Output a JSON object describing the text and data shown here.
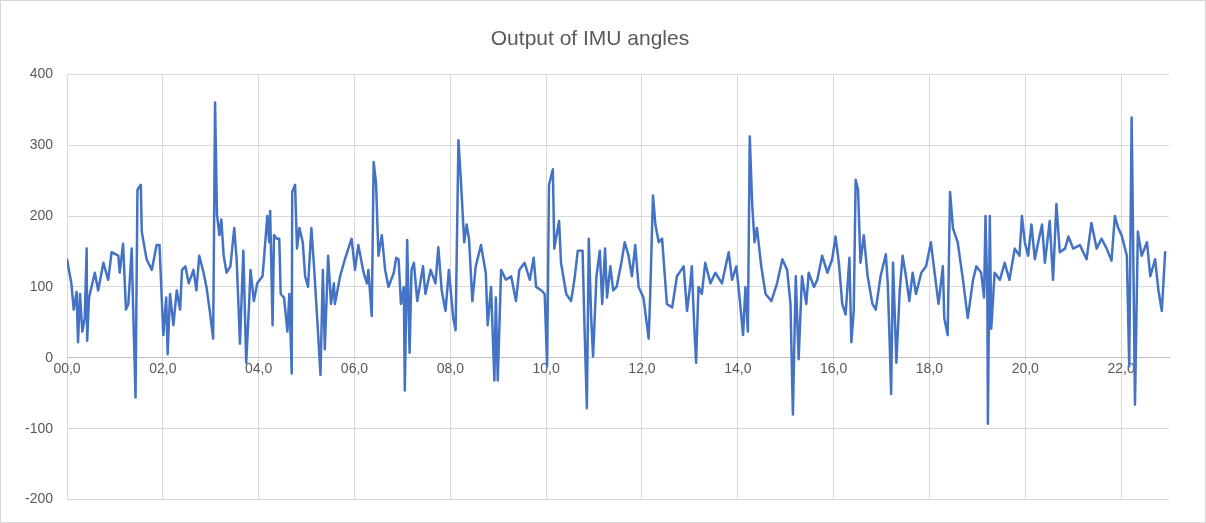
{
  "chart_data": {
    "type": "line",
    "title": "Output of IMU angles",
    "x": [
      0,
      0.09,
      0.14,
      0.2,
      0.23,
      0.27,
      0.32,
      0.37,
      0.41,
      0.42,
      0.46,
      0.58,
      0.65,
      0.76,
      0.86,
      0.93,
      1.07,
      1.1,
      1.17,
      1.23,
      1.28,
      1.35,
      1.38,
      1.43,
      1.47,
      1.54,
      1.56,
      1.66,
      1.77,
      1.87,
      1.93,
      2.01,
      2.07,
      2.1,
      2.15,
      2.22,
      2.29,
      2.36,
      2.4,
      2.47,
      2.54,
      2.64,
      2.7,
      2.76,
      2.85,
      2.91,
      2.98,
      3.05,
      3.09,
      3.13,
      3.18,
      3.22,
      3.27,
      3.33,
      3.41,
      3.49,
      3.54,
      3.61,
      3.68,
      3.74,
      3.8,
      3.83,
      3.9,
      3.97,
      4.08,
      4.11,
      4.18,
      4.22,
      4.24,
      4.29,
      4.32,
      4.38,
      4.43,
      4.46,
      4.53,
      4.6,
      4.64,
      4.69,
      4.7,
      4.76,
      4.8,
      4.85,
      4.92,
      4.97,
      5.03,
      5.1,
      5.16,
      5.23,
      5.29,
      5.34,
      5.38,
      5.45,
      5.51,
      5.57,
      5.59,
      5.7,
      5.8,
      5.94,
      6.01,
      6.08,
      6.19,
      6.26,
      6.29,
      6.36,
      6.4,
      6.45,
      6.5,
      6.57,
      6.64,
      6.71,
      6.82,
      6.87,
      6.92,
      6.97,
      7.03,
      7.05,
      7.1,
      7.15,
      7.19,
      7.24,
      7.31,
      7.43,
      7.48,
      7.59,
      7.69,
      7.75,
      7.82,
      7.9,
      7.97,
      8.06,
      8.11,
      8.17,
      8.22,
      8.29,
      8.34,
      8.39,
      8.46,
      8.53,
      8.64,
      8.74,
      8.78,
      8.85,
      8.92,
      8.95,
      8.99,
      9.06,
      9.16,
      9.27,
      9.37,
      9.44,
      9.55,
      9.66,
      9.74,
      9.79,
      9.9,
      9.97,
      10.02,
      10.06,
      10.14,
      10.17,
      10.27,
      10.31,
      10.42,
      10.52,
      10.59,
      10.66,
      10.76,
      10.8,
      10.85,
      10.89,
      10.94,
      10.98,
      11.05,
      11.12,
      11.17,
      11.23,
      11.27,
      11.34,
      11.4,
      11.47,
      11.57,
      11.64,
      11.72,
      11.79,
      11.86,
      11.93,
      12.03,
      12.14,
      12.17,
      12.23,
      12.28,
      12.35,
      12.42,
      12.52,
      12.63,
      12.73,
      12.87,
      12.94,
      13.01,
      13.04,
      13.09,
      13.13,
      13.18,
      13.25,
      13.32,
      13.43,
      13.53,
      13.67,
      13.81,
      13.88,
      13.97,
      14.05,
      14.11,
      14.16,
      14.21,
      14.25,
      14.3,
      14.35,
      14.4,
      14.49,
      14.58,
      14.7,
      14.82,
      14.93,
      15.03,
      15.1,
      15.15,
      15.21,
      15.27,
      15.34,
      15.43,
      15.48,
      15.59,
      15.66,
      15.76,
      15.87,
      15.97,
      16.04,
      16.11,
      16.18,
      16.25,
      16.33,
      16.37,
      16.42,
      16.46,
      16.51,
      16.56,
      16.63,
      16.71,
      16.81,
      16.88,
      16.98,
      17.09,
      17.13,
      17.17,
      17.2,
      17.24,
      17.31,
      17.38,
      17.44,
      17.51,
      17.58,
      17.65,
      17.72,
      17.83,
      17.93,
      18.03,
      18.1,
      18.19,
      18.28,
      18.31,
      18.38,
      18.43,
      18.49,
      18.59,
      18.7,
      18.8,
      18.91,
      18.98,
      19.08,
      19.14,
      19.17,
      19.21,
      19.22,
      19.26,
      19.29,
      19.36,
      19.47,
      19.57,
      19.67,
      19.78,
      19.88,
      19.93,
      19.99,
      20.06,
      20.13,
      20.2,
      20.27,
      20.35,
      20.41,
      20.51,
      20.58,
      20.65,
      20.72,
      20.83,
      20.9,
      21,
      21.14,
      21.28,
      21.38,
      21.49,
      21.59,
      21.7,
      21.8,
      21.87,
      21.94,
      22.01,
      22.12,
      22.17,
      22.22,
      22.25,
      22.29,
      22.35,
      22.43,
      22.54,
      22.61,
      22.71,
      22.78,
      22.85,
      22.92
    ],
    "series": [
      {
        "color": "#4472c4",
        "values": [
          139,
          105,
          68,
          93,
          22,
          90,
          37,
          56,
          154,
          24,
          85,
          120,
          95,
          134,
          110,
          149,
          144,
          120,
          161,
          68,
          76,
          154,
          71,
          -56,
          237,
          244,
          178,
          139,
          124,
          159,
          159,
          32,
          85,
          5,
          90,
          46,
          95,
          68,
          124,
          129,
          105,
          124,
          95,
          144,
          120,
          100,
          66,
          27,
          360,
          202,
          173,
          195,
          144,
          120,
          129,
          183,
          139,
          20,
          151,
          -7,
          76,
          124,
          80,
          105,
          115,
          139,
          200,
          163,
          207,
          46,
          173,
          168,
          168,
          90,
          85,
          37,
          90,
          -22,
          234,
          244,
          154,
          183,
          163,
          115,
          100,
          183,
          124,
          46,
          -24,
          124,
          12,
          144,
          76,
          105,
          76,
          115,
          139,
          168,
          124,
          159,
          120,
          105,
          124,
          59,
          276,
          246,
          144,
          173,
          124,
          100,
          120,
          141,
          139,
          76,
          100,
          -46,
          166,
          7,
          124,
          134,
          80,
          129,
          90,
          124,
          105,
          156,
          95,
          66,
          124,
          56,
          39,
          307,
          251,
          163,
          188,
          168,
          80,
          129,
          159,
          120,
          46,
          100,
          -32,
          85,
          -32,
          124,
          110,
          115,
          80,
          124,
          134,
          110,
          141,
          100,
          95,
          90,
          -12,
          244,
          266,
          154,
          193,
          134,
          90,
          80,
          110,
          151,
          151,
          46,
          -71,
          168,
          56,
          2,
          115,
          151,
          76,
          154,
          85,
          129,
          95,
          100,
          134,
          163,
          144,
          115,
          159,
          100,
          85,
          27,
          85,
          229,
          188,
          163,
          168,
          76,
          71,
          115,
          129,
          66,
          105,
          129,
          46,
          -7,
          100,
          90,
          134,
          105,
          120,
          105,
          149,
          110,
          129,
          76,
          32,
          100,
          37,
          312,
          217,
          163,
          183,
          129,
          90,
          80,
          105,
          139,
          124,
          76,
          -80,
          115,
          -2,
          115,
          76,
          120,
          100,
          110,
          144,
          120,
          139,
          171,
          134,
          76,
          61,
          141,
          22,
          66,
          251,
          237,
          134,
          173,
          115,
          76,
          68,
          115,
          146,
          105,
          22,
          -51,
          134,
          -7,
          95,
          144,
          115,
          80,
          120,
          90,
          120,
          129,
          163,
          124,
          76,
          129,
          56,
          32,
          234,
          183,
          163,
          110,
          56,
          110,
          129,
          120,
          85,
          200,
          85,
          -93,
          200,
          41,
          120,
          110,
          134,
          110,
          154,
          144,
          200,
          163,
          144,
          188,
          139,
          163,
          188,
          134,
          193,
          110,
          217,
          149,
          154,
          171,
          154,
          159,
          139,
          190,
          154,
          168,
          154,
          137,
          200,
          183,
          173,
          144,
          -12,
          339,
          173,
          -66,
          178,
          144,
          163,
          115,
          139,
          95,
          66,
          149
        ]
      }
    ],
    "xlim": [
      0,
      23
    ],
    "xticks": [
      {
        "value": 0,
        "label": "00,0"
      },
      {
        "value": 2,
        "label": "02,0"
      },
      {
        "value": 4,
        "label": "04,0"
      },
      {
        "value": 6,
        "label": "06,0"
      },
      {
        "value": 8,
        "label": "08,0"
      },
      {
        "value": 10,
        "label": "10,0"
      },
      {
        "value": 12,
        "label": "12,0"
      },
      {
        "value": 14,
        "label": "14,0"
      },
      {
        "value": 16,
        "label": "16,0"
      },
      {
        "value": 18,
        "label": "18,0"
      },
      {
        "value": 20,
        "label": "20,0"
      },
      {
        "value": 22,
        "label": "22,0"
      }
    ],
    "ylim": [
      -200,
      400
    ],
    "yticks": [
      -200,
      -100,
      0,
      100,
      200,
      300,
      400
    ],
    "grid": true,
    "marker": "none",
    "line_style": "solid",
    "legend": false
  }
}
